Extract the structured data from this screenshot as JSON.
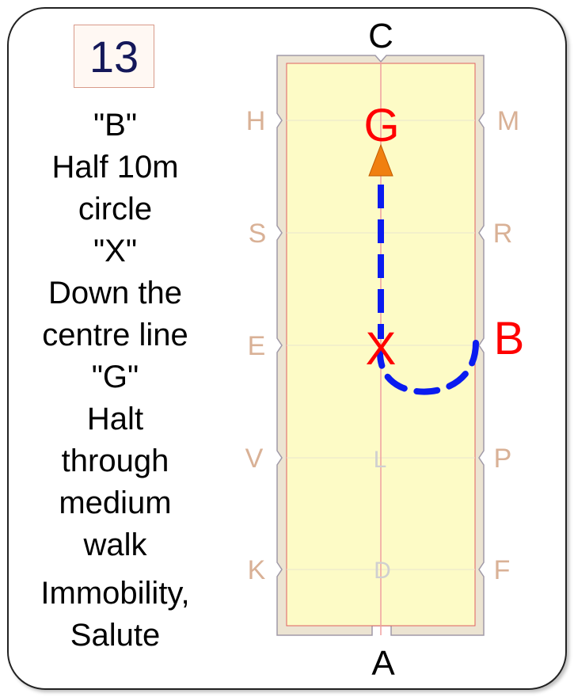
{
  "test_number": "13",
  "instructions": [
    "\"B\"",
    "Half 10m",
    "circle",
    "\"X\"",
    "Down the",
    "centre line",
    "\"G\"",
    "Halt",
    "through",
    "medium",
    "walk",
    "Immobility,",
    "Salute"
  ],
  "arena": {
    "end_letters": {
      "top": "C",
      "bottom": "A"
    },
    "left_letters": [
      "H",
      "S",
      "E",
      "V",
      "K"
    ],
    "right_letters": [
      "M",
      "R",
      "B",
      "P",
      "F"
    ],
    "centre_letters": [
      "L",
      "D"
    ],
    "highlight_letters": {
      "start": "B",
      "middle": "X",
      "end": "G"
    }
  },
  "colors": {
    "arena_fill": "#fdfbc6",
    "arena_border": "#ece4d2",
    "marker_letter": "#d9b196",
    "highlight_letter": "#ff0000",
    "route": "#0a1bf0",
    "arrow": "#f08010",
    "number_text": "#14185a"
  }
}
